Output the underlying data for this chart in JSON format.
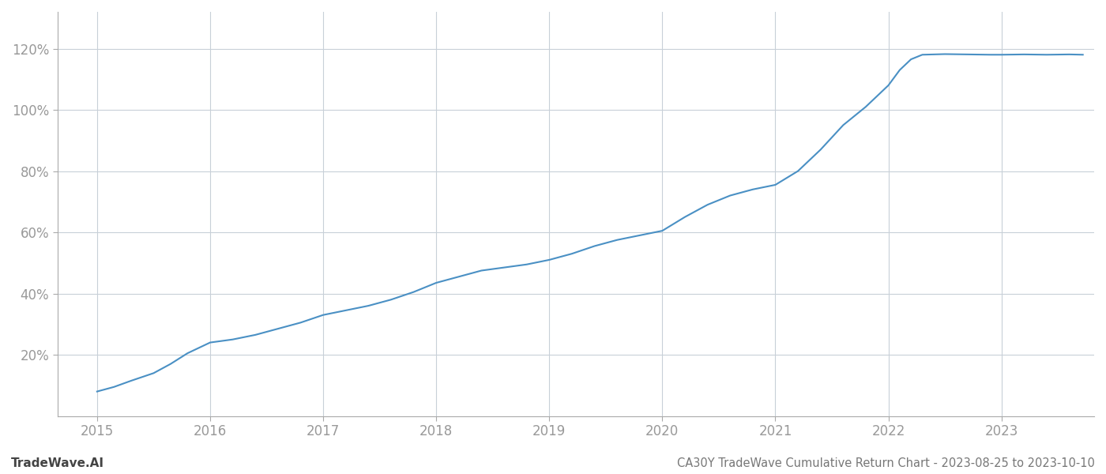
{
  "title": "CA30Y TradeWave Cumulative Return Chart - 2023-08-25 to 2023-10-10",
  "watermark": "TradeWave.AI",
  "line_color": "#4a90c4",
  "background_color": "#ffffff",
  "grid_color": "#c8d0d8",
  "x_values": [
    2015.0,
    2015.15,
    2015.3,
    2015.5,
    2015.65,
    2015.8,
    2016.0,
    2016.2,
    2016.4,
    2016.6,
    2016.8,
    2017.0,
    2017.2,
    2017.4,
    2017.6,
    2017.8,
    2018.0,
    2018.2,
    2018.4,
    2018.6,
    2018.8,
    2019.0,
    2019.2,
    2019.4,
    2019.6,
    2019.8,
    2020.0,
    2020.2,
    2020.4,
    2020.6,
    2020.8,
    2021.0,
    2021.2,
    2021.4,
    2021.6,
    2021.8,
    2022.0,
    2022.1,
    2022.2,
    2022.3,
    2022.5,
    2022.7,
    2022.9,
    2023.0,
    2023.2,
    2023.4,
    2023.6,
    2023.72
  ],
  "y_values": [
    8.0,
    9.5,
    11.5,
    14.0,
    17.0,
    20.5,
    24.0,
    25.0,
    26.5,
    28.5,
    30.5,
    33.0,
    34.5,
    36.0,
    38.0,
    40.5,
    43.5,
    45.5,
    47.5,
    48.5,
    49.5,
    51.0,
    53.0,
    55.5,
    57.5,
    59.0,
    60.5,
    65.0,
    69.0,
    72.0,
    74.0,
    75.5,
    80.0,
    87.0,
    95.0,
    101.0,
    108.0,
    113.0,
    116.5,
    118.0,
    118.2,
    118.1,
    118.0,
    118.0,
    118.1,
    118.0,
    118.1,
    118.0
  ],
  "xlim": [
    2014.65,
    2023.82
  ],
  "ylim": [
    0,
    132
  ],
  "yticks": [
    20,
    40,
    60,
    80,
    100,
    120
  ],
  "xticks": [
    2015,
    2016,
    2017,
    2018,
    2019,
    2020,
    2021,
    2022,
    2023
  ],
  "line_width": 1.5,
  "title_fontsize": 10.5,
  "watermark_fontsize": 11,
  "tick_label_color": "#999999",
  "title_color": "#777777",
  "watermark_color": "#444444",
  "spine_color": "#aaaaaa"
}
